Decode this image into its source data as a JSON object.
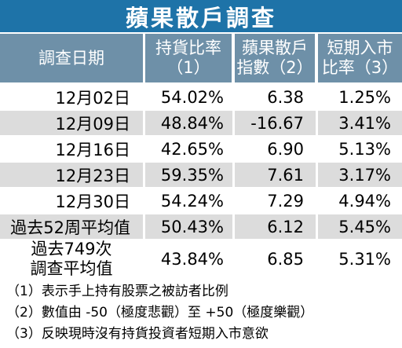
{
  "title": "蘋果散戶調查",
  "headers": [
    {
      "line1": "調查日期",
      "line2": ""
    },
    {
      "line1": "持貨比率",
      "line2": "（1）"
    },
    {
      "line1": "蘋果散戶",
      "line2": "指數（2）"
    },
    {
      "line1": "短期入市",
      "line2": "比率（3）"
    }
  ],
  "rows": [
    {
      "date": "12月02日",
      "holding": "54.02%",
      "index": "6.38",
      "entry": "1.25%"
    },
    {
      "date": "12月09日",
      "holding": "48.84%",
      "index": "-16.67",
      "entry": "3.41%"
    },
    {
      "date": "12月16日",
      "holding": "42.65%",
      "index": "6.90",
      "entry": "5.13%"
    },
    {
      "date": "12月23日",
      "holding": "59.35%",
      "index": "7.61",
      "entry": "3.17%"
    },
    {
      "date": "12月30日",
      "holding": "54.24%",
      "index": "7.29",
      "entry": "4.94%"
    },
    {
      "date": "過去52周平均值",
      "holding": "50.43%",
      "index": "6.12",
      "entry": "5.45%"
    }
  ],
  "last_row": {
    "date_line1": "過去749次",
    "date_line2": "調查平均值",
    "holding": "43.84%",
    "index": "6.85",
    "entry": "5.31%"
  },
  "notes": [
    "（1）表示手上持有股票之被訪者比例",
    "（2）數值由 -50（極度悲觀）至 +50（極度樂觀）",
    "（3）反映現時沒有持貨投資者短期入市意欲"
  ],
  "colors": {
    "title_bg": "#1e73a8",
    "header_bg": "#6e90a8",
    "row_light": "#ffffff",
    "row_gray": "#dcdcdc"
  }
}
